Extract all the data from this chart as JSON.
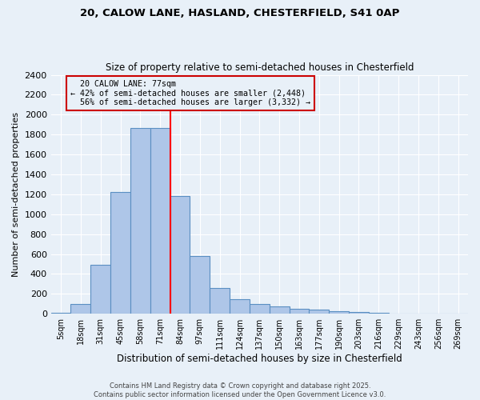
{
  "title1": "20, CALOW LANE, HASLAND, CHESTERFIELD, S41 0AP",
  "title2": "Size of property relative to semi-detached houses in Chesterfield",
  "xlabel": "Distribution of semi-detached houses by size in Chesterfield",
  "ylabel": "Number of semi-detached properties",
  "property_label": "20 CALOW LANE: 77sqm",
  "pct_smaller": 42,
  "pct_larger": 56,
  "n_smaller": 2448,
  "n_larger": 3332,
  "bin_labels": [
    "5sqm",
    "18sqm",
    "31sqm",
    "45sqm",
    "58sqm",
    "71sqm",
    "84sqm",
    "97sqm",
    "111sqm",
    "124sqm",
    "137sqm",
    "150sqm",
    "163sqm",
    "177sqm",
    "190sqm",
    "203sqm",
    "216sqm",
    "229sqm",
    "243sqm",
    "256sqm",
    "269sqm"
  ],
  "bar_values": [
    10,
    95,
    490,
    1220,
    1870,
    1870,
    1180,
    580,
    255,
    150,
    95,
    75,
    50,
    45,
    28,
    14,
    8,
    5,
    3,
    2,
    2
  ],
  "bar_color": "#aec6e8",
  "bar_edge_color": "#5a8fc2",
  "vline_x": 5.5,
  "ylim": [
    0,
    2400
  ],
  "yticks": [
    0,
    200,
    400,
    600,
    800,
    1000,
    1200,
    1400,
    1600,
    1800,
    2000,
    2200,
    2400
  ],
  "background_color": "#e8f0f8",
  "grid_color": "#ffffff",
  "annotation_box_color": "#cc0000",
  "footer": "Contains HM Land Registry data © Crown copyright and database right 2025.\nContains public sector information licensed under the Open Government Licence v3.0."
}
